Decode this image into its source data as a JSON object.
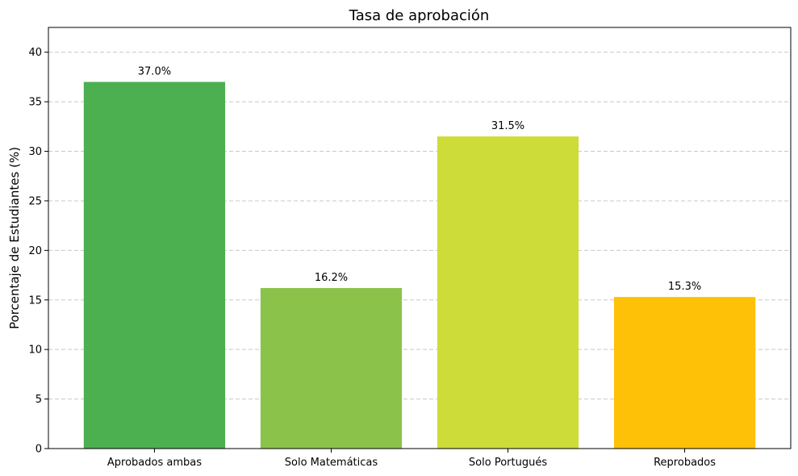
{
  "chart_data": {
    "type": "bar",
    "title": "Tasa de aprobación",
    "xlabel": "",
    "ylabel": "Porcentaje de Estudiantes (%)",
    "categories": [
      "Aprobados ambas",
      "Solo Matemáticas",
      "Solo Portugués",
      "Reprobados"
    ],
    "values": [
      37.0,
      16.2,
      31.5,
      15.3
    ],
    "data_labels": [
      "37.0%",
      "16.2%",
      "31.5%",
      "15.3%"
    ],
    "colors": [
      "#4caf50",
      "#8bc34a",
      "#cddc39",
      "#ffc107"
    ],
    "ylim": [
      0,
      42.5
    ],
    "yticks": [
      0,
      5,
      10,
      15,
      20,
      25,
      30,
      35,
      40
    ],
    "ytick_labels": [
      "0",
      "5",
      "10",
      "15",
      "20",
      "25",
      "30",
      "35",
      "40"
    ],
    "grid": {
      "axis": "y",
      "style": "dashed",
      "color": "#c8c8c8"
    }
  }
}
